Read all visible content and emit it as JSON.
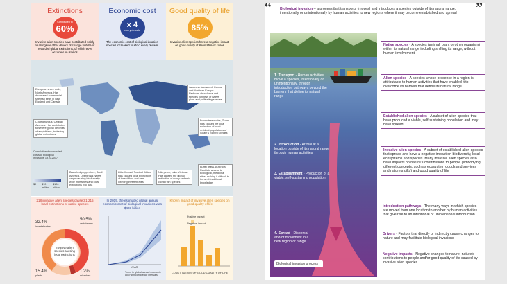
{
  "infographic": {
    "col1": {
      "title": "Extinctions",
      "circle_small": "Contributed to",
      "circle_big": "60%",
      "desc": "Invasive alien species have contributed solely or alongside other drivers of change to 60% of recorded global extinctions, of which 90% occurred on islands"
    },
    "col2": {
      "title": "Economic cost",
      "circle_big": "x 4",
      "circle_small": "every decade",
      "desc": "The economic cost of biological invasion species increased fourfold every decade"
    },
    "col3": {
      "title": "Good quality of life",
      "circle_big": "85%",
      "desc": "Invasive alien species have a negative impact on good quality of life in 85% of cases"
    },
    "map_notes": [
      "European shore crab, North America. Has decimated commercial shellfish beds in New England and Canada",
      "Japanese knotweed, Central and Northern Europe. Reduces abundance and species richness of native plant and pollinating species",
      "Chytrid fungus, Central America. Has contributed to severe global declines of amphibians, including global extinctions",
      "Brown tree snake, Guam. Has caused the local extinction of most resident populations of Guam's 25 bird species",
      "Water hyacinth, Lake Victoria. Has caused the global extinction of many endemic cichlid fish species",
      "Buffel grass, Australia. Restricts access to ecological, medicinal sites, making it difficult to transmit traditional knowledge"
    ],
    "map_bottom": [
      "Branched pepper tree, South America. Overgrows native crops causing biodiversity-wide mortalities and local extinctions",
      "Little fire ant, Tropical Africa. Has caused local extinctions of forest floor and tree-dwelling invertebrates",
      "Nile perch, Lake Victoria. Has caused the global extinction of many endemic cichlid fish species"
    ],
    "legend": {
      "title": "Cumulative documented costs of biological invasions 1970-2017",
      "ticks": [
        "$0",
        "$10 million",
        "$100 billion"
      ],
      "nodata": "No data"
    },
    "bottom_left": {
      "title": "218 invasive alien species caused 1,215 local extinctions of native species",
      "center": "Invasive alien species causing local extinctions",
      "segments": [
        {
          "label": "invertebrates",
          "value": "32.4%",
          "color": "#f08a4b"
        },
        {
          "label": "vertebrates",
          "value": "50.5%",
          "color": "#e8483b"
        },
        {
          "label": "plants",
          "value": "15.4%",
          "color": "#f7c8a8"
        },
        {
          "label": "microbes",
          "value": "1.2%",
          "color": "#b5322c"
        }
      ]
    },
    "bottom_mid": {
      "title": "In 2019, the estimated global annual economic cost of biological invasions was $423 billion",
      "ylabel": "AVERAGE ANNUAL COST (US$ BILLION)",
      "xlabel": "YEAR",
      "legend": "Trend in global annual economic cost with confidence intervals"
    },
    "bottom_right": {
      "title": "Known impact of invasive alien species on good quality of life",
      "pos": "Positive impact",
      "neg": "Negative impact",
      "xlabel": "CONSTITUENTS OF GOOD QUALITY OF LIFE",
      "ylabel": "PERCENTAGE OF THE NUMBER OF DOCUMENTED IMPACTS"
    }
  },
  "diagram": {
    "header_title": "Biological invasion",
    "header_text": " – a process that transports (moves) and introduces a species outside of its natural range, intentionally or unintentionally by human activities to new regions where it may become established and spread",
    "steps": [
      {
        "title": "1. Transport",
        "text": " - Human activities move a species, intentionally or unintentionally, through introduction pathways beyond the barriers that define its natural range"
      },
      {
        "title": "2. Introduction",
        "text": " - Arrival at a location outside of its natural range through human activities"
      },
      {
        "title": "3. Establishment",
        "text": " - Production of a viable, self-sustaining population"
      },
      {
        "title": "4. Spread",
        "text": " - Dispersal and/or movement in a new region or range"
      }
    ],
    "process_label": "Biological invasion process",
    "definitions": [
      {
        "title": "Native species",
        "text": " - A species (animal, plant or other organism) within its natural range including shifting its range, without human involvement"
      },
      {
        "title": "Alien species",
        "text": " - A species whose presence in a region is attributable to human activities that have enabled it to overcome its barriers that define its natural range"
      },
      {
        "title": "Established alien species",
        "text": " - A subset of alien species that have produced a viable, self-sustaining population and may have spread"
      },
      {
        "title": "Invasive alien species",
        "text": " - A subset of established alien species that spread and have a negative impact on biodiversity, local ecosystems and species. Many invasive alien species also have impacts on nature's contributions to people (embodying different concepts, such as ecosystem goods and services and nature's gifts) and good quality of life"
      }
    ],
    "terms": [
      {
        "title": "Introduction pathways",
        "text": " - The many ways in which species are moved from one location to another by human activities that give rise to an intentional or unintentional introduction"
      },
      {
        "title": "Drivers",
        "text": " - Factors that directly or indirectly cause changes to nature and may facilitate biological invasions"
      },
      {
        "title": "Negative impacts",
        "text": " - Negative changes to nature, nature's contributions to people and/or good quality of life caused by invasive alien species"
      }
    ]
  }
}
